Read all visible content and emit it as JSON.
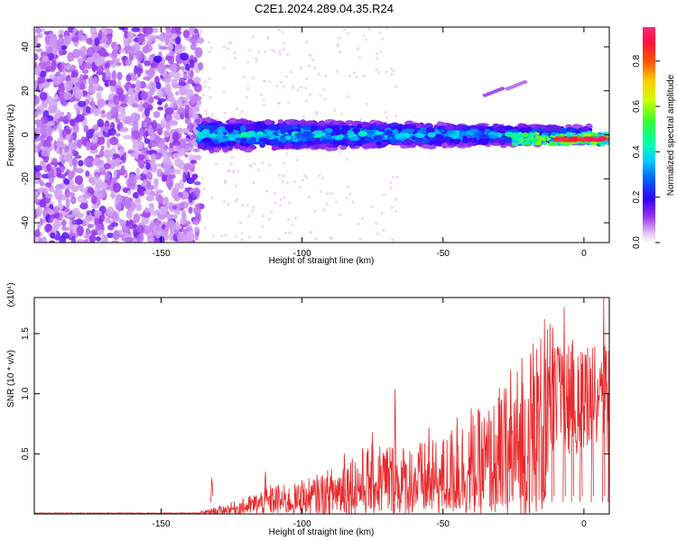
{
  "title": "C2E1.2024.289.04.35.R24",
  "colors": {
    "axis": "#000000",
    "snr_line": "#e8282a",
    "colormap": [
      "#ffffff",
      "#d6b3f2",
      "#9933ee",
      "#5500ee",
      "#2222ff",
      "#00aaff",
      "#00ffcc",
      "#33ff33",
      "#ccff00",
      "#ffaa00",
      "#ff2200",
      "#ff0066",
      "#ff55cc"
    ]
  },
  "chart_data": [
    {
      "type": "heatmap",
      "title": "C2E1.2024.289.04.35.R24",
      "xlabel": "Height of straight line (km)",
      "ylabel": "Frequency (Hz)",
      "xlim": [
        -195,
        9
      ],
      "ylim": [
        -49,
        49
      ],
      "x_ticks": [
        -150,
        -100,
        -50,
        0
      ],
      "y_ticks": [
        -40,
        -20,
        0,
        20,
        40
      ],
      "x_tick_labels": [
        "-150",
        "-100",
        "-50",
        "0"
      ],
      "y_tick_labels": [
        "-40",
        "-20",
        "0",
        "20",
        "40"
      ],
      "grid": false,
      "colorbar": {
        "label": "Normalized spectral amplitude",
        "range": [
          0.0,
          0.95
        ],
        "ticks": [
          0.0,
          0.2,
          0.4,
          0.6,
          0.8
        ],
        "tick_labels": [
          "0.0",
          "0.2",
          "0.4",
          "0.6",
          "0.8"
        ]
      },
      "regions": [
        {
          "x_range": [
            -195,
            -136
          ],
          "frequency_range": [
            -49,
            49
          ],
          "amplitude": [
            0.05,
            0.15
          ]
        },
        {
          "x_range": [
            -136,
            -10
          ],
          "frequency_center": 0,
          "frequency_halfwidth": [
            7,
            4
          ],
          "amplitude": [
            0.1,
            0.35
          ]
        },
        {
          "x_range": [
            -10,
            9
          ],
          "frequency_center": -2,
          "amplitude": [
            0.8,
            0.95
          ]
        }
      ],
      "features": [
        {
          "x": -35,
          "y": 18,
          "amplitude": 0.1
        },
        {
          "x": -27,
          "y": 21,
          "amplitude": 0.08
        }
      ]
    },
    {
      "type": "line",
      "xlabel": "Height of straight line (km)",
      "ylabel": "SNR (10 * v/v)",
      "y_scale_label": "(x10⁴)",
      "xlim": [
        -195,
        9
      ],
      "ylim": [
        0,
        1.8
      ],
      "x_ticks": [
        -150,
        -100,
        -50,
        0
      ],
      "y_ticks": [
        0.5,
        1.0,
        1.5
      ],
      "x_tick_labels": [
        "-150",
        "-100",
        "-50",
        "0"
      ],
      "y_tick_labels": [
        "0.5",
        "1.0",
        "1.5"
      ],
      "grid": false,
      "series": [
        {
          "x": [
            -195,
            -180,
            -170,
            -160,
            -150,
            -140,
            -135,
            -130,
            -125,
            -120,
            -115,
            -110,
            -105,
            -100,
            -95,
            -90,
            -85,
            -80,
            -75,
            -70,
            -65,
            -60,
            -55,
            -50,
            -45,
            -40,
            -35,
            -30,
            -25,
            -20,
            -15,
            -10,
            -5,
            0,
            5,
            9
          ],
          "envelope": [
            0.02,
            0.02,
            0.02,
            0.02,
            0.02,
            0.02,
            0.03,
            0.06,
            0.1,
            0.14,
            0.2,
            0.26,
            0.24,
            0.27,
            0.33,
            0.38,
            0.5,
            0.55,
            0.6,
            0.64,
            0.58,
            0.62,
            0.6,
            0.65,
            0.8,
            0.85,
            0.9,
            1.0,
            1.2,
            1.4,
            1.55,
            1.6,
            1.45,
            1.35,
            1.3,
            1.2
          ],
          "peaks": [
            [
              -132,
              0.3
            ],
            [
              -113,
              0.35
            ],
            [
              -100,
              0.28
            ],
            [
              -85,
              0.5
            ],
            [
              -75,
              0.68
            ],
            [
              -67,
              1.04
            ],
            [
              -55,
              0.72
            ],
            [
              -45,
              0.8
            ],
            [
              -40,
              0.88
            ],
            [
              -30,
              1.05
            ],
            [
              -26,
              1.2
            ],
            [
              -22,
              1.3
            ],
            [
              -18,
              1.42
            ],
            [
              -14,
              1.62
            ],
            [
              -11,
              1.55
            ],
            [
              -7,
              1.72
            ],
            [
              -4,
              1.45
            ],
            [
              -1,
              1.35
            ],
            [
              3,
              1.38
            ],
            [
              7,
              1.82
            ],
            [
              9,
              1.25
            ]
          ]
        }
      ]
    }
  ]
}
